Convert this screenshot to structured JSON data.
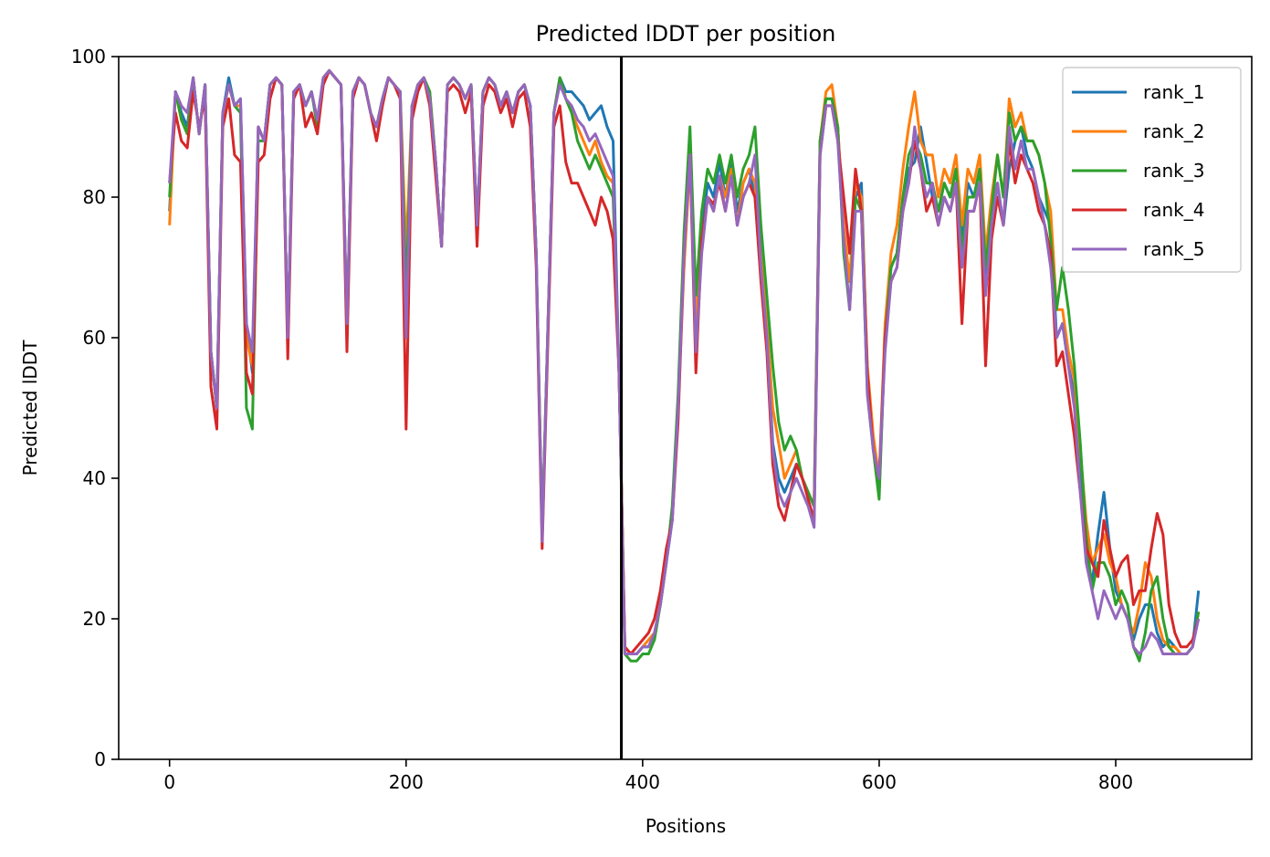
{
  "chart_data": {
    "type": "line",
    "title": "Predicted lDDT per position",
    "xlabel": "Positions",
    "ylabel": "Predicted lDDT",
    "xlim": [
      -43,
      915
    ],
    "ylim": [
      0,
      100
    ],
    "xticks": [
      0,
      200,
      400,
      600,
      800
    ],
    "yticks": [
      0,
      20,
      40,
      60,
      80,
      100
    ],
    "xtick_labels": [
      "0",
      "200",
      "400",
      "600",
      "800"
    ],
    "ytick_labels": [
      "0",
      "20",
      "40",
      "60",
      "80",
      "100"
    ],
    "grid": false,
    "legend_position": "top-right",
    "chain_break_x": 382,
    "x": [
      0,
      5,
      10,
      15,
      20,
      25,
      30,
      35,
      40,
      45,
      50,
      55,
      60,
      65,
      70,
      75,
      80,
      85,
      90,
      95,
      100,
      105,
      110,
      115,
      120,
      125,
      130,
      135,
      140,
      145,
      150,
      155,
      160,
      165,
      170,
      175,
      180,
      185,
      190,
      195,
      200,
      205,
      210,
      215,
      220,
      225,
      230,
      235,
      240,
      245,
      250,
      255,
      260,
      265,
      270,
      275,
      280,
      285,
      290,
      295,
      300,
      305,
      310,
      315,
      320,
      325,
      330,
      335,
      340,
      345,
      350,
      355,
      360,
      365,
      370,
      375,
      380,
      385,
      390,
      395,
      400,
      405,
      410,
      415,
      420,
      425,
      430,
      435,
      440,
      445,
      450,
      455,
      460,
      465,
      470,
      475,
      480,
      485,
      490,
      495,
      500,
      505,
      510,
      515,
      520,
      525,
      530,
      535,
      540,
      545,
      550,
      555,
      560,
      565,
      570,
      575,
      580,
      585,
      590,
      595,
      600,
      605,
      610,
      615,
      620,
      625,
      630,
      635,
      640,
      645,
      650,
      655,
      660,
      665,
      670,
      675,
      680,
      685,
      690,
      695,
      700,
      705,
      710,
      715,
      720,
      725,
      730,
      735,
      740,
      745,
      750,
      755,
      760,
      765,
      770,
      775,
      780,
      785,
      790,
      795,
      800,
      805,
      810,
      815,
      820,
      825,
      830,
      835,
      840,
      845,
      850,
      855,
      860,
      865,
      870
    ],
    "series": [
      {
        "name": "rank_1",
        "color": "#1f77b4",
        "values": [
          78,
          95,
          92,
          90,
          97,
          89,
          96,
          58,
          50,
          92,
          97,
          93,
          94,
          62,
          55,
          90,
          88,
          96,
          97,
          96,
          60,
          95,
          96,
          93,
          95,
          91,
          97,
          98,
          97,
          96,
          60,
          95,
          97,
          96,
          92,
          90,
          94,
          97,
          96,
          95,
          62,
          93,
          96,
          97,
          94,
          85,
          73,
          96,
          97,
          96,
          94,
          96,
          75,
          95,
          97,
          96,
          93,
          95,
          92,
          95,
          96,
          93,
          72,
          32,
          62,
          92,
          97,
          95,
          95,
          94,
          93,
          91,
          92,
          93,
          90,
          88,
          55,
          16,
          15,
          15,
          16,
          16,
          18,
          22,
          28,
          34,
          50,
          72,
          88,
          60,
          75,
          82,
          80,
          85,
          80,
          85,
          78,
          82,
          84,
          80,
          70,
          60,
          45,
          40,
          38,
          40,
          42,
          40,
          38,
          36,
          88,
          94,
          94,
          90,
          75,
          68,
          80,
          82,
          55,
          45,
          38,
          60,
          70,
          72,
          80,
          84,
          85,
          90,
          85,
          80,
          78,
          82,
          80,
          84,
          74,
          82,
          80,
          84,
          68,
          76,
          82,
          76,
          84,
          88,
          90,
          86,
          84,
          80,
          78,
          76,
          60,
          62,
          56,
          52,
          40,
          30,
          25,
          32,
          38,
          30,
          24,
          22,
          20,
          17,
          20,
          22,
          22,
          18,
          16,
          17,
          16,
          15,
          15,
          16,
          24
        ]
      },
      {
        "name": "rank_2",
        "color": "#ff7f0e",
        "values": [
          76,
          95,
          91,
          89,
          97,
          89,
          96,
          58,
          50,
          92,
          96,
          93,
          93,
          60,
          56,
          90,
          88,
          96,
          97,
          96,
          60,
          95,
          96,
          93,
          95,
          91,
          97,
          98,
          97,
          96,
          62,
          95,
          97,
          96,
          92,
          90,
          94,
          97,
          96,
          95,
          72,
          93,
          96,
          97,
          95,
          85,
          73,
          96,
          97,
          96,
          94,
          96,
          76,
          95,
          97,
          96,
          93,
          95,
          92,
          95,
          96,
          93,
          72,
          32,
          62,
          92,
          97,
          94,
          92,
          90,
          88,
          86,
          88,
          85,
          83,
          82,
          55,
          16,
          15,
          15,
          16,
          17,
          18,
          22,
          28,
          35,
          50,
          70,
          85,
          62,
          73,
          80,
          78,
          83,
          80,
          84,
          76,
          82,
          84,
          82,
          72,
          62,
          50,
          45,
          40,
          42,
          44,
          40,
          38,
          36,
          88,
          95,
          96,
          90,
          76,
          68,
          82,
          80,
          56,
          46,
          40,
          62,
          72,
          76,
          84,
          90,
          95,
          88,
          86,
          86,
          80,
          84,
          82,
          86,
          76,
          84,
          82,
          86,
          72,
          80,
          86,
          80,
          94,
          90,
          92,
          88,
          88,
          86,
          82,
          78,
          64,
          64,
          58,
          54,
          44,
          34,
          28,
          30,
          32,
          28,
          26,
          22,
          20,
          18,
          22,
          28,
          26,
          20,
          17,
          16,
          16,
          15,
          15,
          16,
          21
        ]
      },
      {
        "name": "rank_3",
        "color": "#2ca02c",
        "values": [
          80,
          95,
          91,
          89,
          97,
          89,
          96,
          58,
          50,
          92,
          96,
          93,
          92,
          50,
          47,
          88,
          88,
          96,
          97,
          96,
          60,
          95,
          96,
          93,
          95,
          90,
          97,
          98,
          97,
          96,
          62,
          95,
          97,
          96,
          92,
          90,
          94,
          97,
          96,
          95,
          66,
          93,
          96,
          97,
          95,
          85,
          73,
          96,
          97,
          96,
          94,
          96,
          76,
          95,
          97,
          96,
          93,
          95,
          92,
          95,
          96,
          93,
          72,
          32,
          62,
          92,
          97,
          94,
          92,
          88,
          86,
          84,
          86,
          84,
          82,
          80,
          55,
          15,
          14,
          14,
          15,
          15,
          17,
          22,
          28,
          36,
          52,
          75,
          90,
          66,
          78,
          84,
          82,
          86,
          82,
          86,
          80,
          84,
          86,
          90,
          76,
          66,
          56,
          48,
          44,
          46,
          44,
          40,
          38,
          36,
          88,
          94,
          94,
          90,
          72,
          64,
          80,
          78,
          52,
          44,
          37,
          60,
          70,
          72,
          80,
          86,
          88,
          86,
          82,
          82,
          78,
          82,
          80,
          84,
          72,
          80,
          80,
          84,
          70,
          78,
          86,
          80,
          92,
          88,
          90,
          88,
          88,
          86,
          82,
          74,
          64,
          70,
          64,
          56,
          45,
          32,
          24,
          28,
          28,
          26,
          22,
          24,
          22,
          16,
          14,
          18,
          24,
          26,
          20,
          16,
          15,
          15,
          15,
          16,
          21
        ]
      },
      {
        "name": "rank_4",
        "color": "#d62728",
        "values": [
          82,
          92,
          88,
          87,
          95,
          90,
          94,
          53,
          47,
          90,
          94,
          86,
          85,
          55,
          52,
          85,
          86,
          94,
          97,
          96,
          57,
          94,
          96,
          90,
          92,
          89,
          96,
          98,
          97,
          96,
          58,
          94,
          97,
          96,
          92,
          88,
          93,
          97,
          96,
          94,
          47,
          91,
          95,
          97,
          93,
          83,
          73,
          95,
          96,
          95,
          92,
          95,
          73,
          93,
          96,
          95,
          92,
          94,
          90,
          94,
          95,
          90,
          70,
          30,
          60,
          90,
          93,
          85,
          82,
          82,
          80,
          78,
          76,
          80,
          78,
          74,
          55,
          16,
          15,
          16,
          17,
          18,
          20,
          24,
          30,
          34,
          48,
          72,
          86,
          55,
          74,
          80,
          79,
          82,
          78,
          83,
          76,
          80,
          82,
          80,
          68,
          58,
          42,
          36,
          34,
          38,
          42,
          40,
          37,
          34,
          86,
          93,
          93,
          88,
          80,
          72,
          84,
          78,
          55,
          44,
          40,
          60,
          68,
          70,
          78,
          82,
          88,
          84,
          78,
          80,
          76,
          80,
          78,
          82,
          62,
          78,
          78,
          82,
          56,
          74,
          80,
          76,
          88,
          82,
          86,
          84,
          82,
          78,
          76,
          72,
          56,
          58,
          52,
          46,
          38,
          30,
          28,
          26,
          34,
          30,
          26,
          28,
          29,
          22,
          24,
          24,
          30,
          35,
          32,
          22,
          18,
          16,
          16,
          17,
          20
        ]
      },
      {
        "name": "rank_5",
        "color": "#9467bd",
        "values": [
          82,
          95,
          93,
          92,
          97,
          89,
          96,
          58,
          50,
          92,
          96,
          93,
          94,
          62,
          58,
          90,
          88,
          96,
          97,
          96,
          60,
          95,
          96,
          93,
          95,
          91,
          97,
          98,
          97,
          96,
          62,
          95,
          97,
          96,
          92,
          90,
          94,
          97,
          96,
          95,
          60,
          93,
          96,
          97,
          94,
          85,
          73,
          96,
          97,
          96,
          94,
          96,
          76,
          95,
          97,
          96,
          93,
          95,
          92,
          95,
          96,
          93,
          72,
          31,
          62,
          92,
          96,
          94,
          93,
          91,
          90,
          88,
          89,
          87,
          85,
          83,
          55,
          15,
          15,
          15,
          16,
          16,
          18,
          22,
          28,
          34,
          50,
          72,
          86,
          58,
          72,
          80,
          78,
          83,
          78,
          83,
          76,
          80,
          82,
          86,
          70,
          60,
          44,
          38,
          36,
          38,
          40,
          38,
          36,
          33,
          86,
          93,
          93,
          88,
          74,
          64,
          78,
          78,
          52,
          44,
          40,
          58,
          68,
          70,
          78,
          82,
          90,
          84,
          80,
          82,
          76,
          80,
          78,
          82,
          70,
          78,
          78,
          82,
          66,
          76,
          82,
          76,
          90,
          84,
          88,
          84,
          84,
          80,
          76,
          70,
          60,
          62,
          56,
          50,
          38,
          28,
          24,
          20,
          24,
          22,
          20,
          22,
          20,
          16,
          15,
          16,
          18,
          17,
          15,
          15,
          15,
          15,
          15,
          16,
          20
        ]
      }
    ]
  }
}
